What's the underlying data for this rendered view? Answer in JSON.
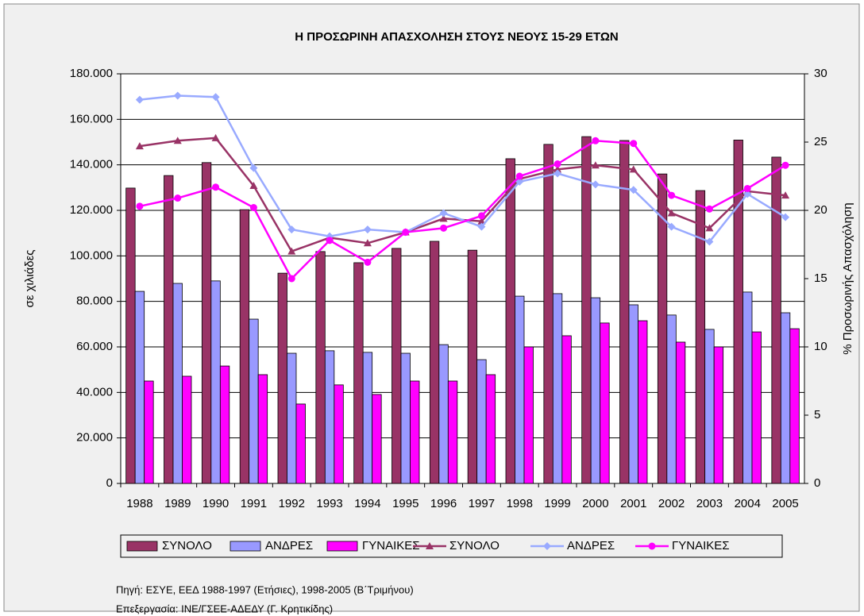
{
  "chart_data": {
    "type": "bar",
    "title": "Η ΠΡΟΣΩΡΙΝΗ ΑΠΑΣΧΟΛΗΣΗ ΣΤΟΥΣ ΝΕΟΥΣ 15-29 ΕΤΩΝ",
    "ylabel": "σε χιλιάδες",
    "y2label": "% Προσωρινής Απασχόληση",
    "categories": [
      "1988",
      "1989",
      "1990",
      "1991",
      "1992",
      "1993",
      "1994",
      "1995",
      "1996",
      "1997",
      "1998",
      "1999",
      "2000",
      "2001",
      "2002",
      "2003",
      "2004",
      "2005"
    ],
    "series": [
      {
        "name": "ΣΥΝΟΛΟ",
        "type": "bar",
        "color": "#993366",
        "values": [
          129800,
          135300,
          141000,
          120300,
          92400,
          101900,
          97000,
          103300,
          106400,
          102500,
          142700,
          149000,
          152400,
          150700,
          136000,
          128700,
          150900,
          143400
        ]
      },
      {
        "name": "ΑΝΔΡΕΣ",
        "type": "bar",
        "color": "#9999ff",
        "values": [
          84400,
          87900,
          89000,
          72200,
          57200,
          58300,
          57600,
          57200,
          61000,
          54400,
          82300,
          83400,
          81600,
          78500,
          74000,
          67700,
          84100,
          75000
        ]
      },
      {
        "name": "ΓΥΝΑΙΚΕΣ",
        "type": "bar",
        "color": "#ff00ff",
        "values": [
          45000,
          47100,
          51600,
          47800,
          34900,
          43300,
          39100,
          45000,
          45000,
          47800,
          60000,
          64900,
          70500,
          71500,
          62100,
          60000,
          66600,
          68000
        ]
      },
      {
        "name": "ΣΥΝΟΛΟ",
        "type": "line",
        "axis": "y2",
        "marker": "triangle",
        "color": "#993366",
        "values": [
          24.7,
          25.1,
          25.3,
          21.8,
          17.0,
          18.0,
          17.6,
          18.4,
          19.4,
          19.2,
          22.3,
          23.0,
          23.3,
          23.0,
          19.8,
          18.7,
          21.4,
          21.1
        ]
      },
      {
        "name": "ΑΝΔΡΕΣ",
        "type": "line",
        "axis": "y2",
        "marker": "diamond",
        "color": "#99aaff",
        "values": [
          28.1,
          28.4,
          28.3,
          23.1,
          18.6,
          18.1,
          18.6,
          18.4,
          19.8,
          18.8,
          22.1,
          22.7,
          21.9,
          21.5,
          18.8,
          17.7,
          21.2,
          19.5
        ]
      },
      {
        "name": "ΓΥΝΑΙΚΕΣ",
        "type": "line",
        "axis": "y2",
        "marker": "circle",
        "color": "#ff00ff",
        "values": [
          20.3,
          20.9,
          21.7,
          20.2,
          15.0,
          17.8,
          16.2,
          18.4,
          18.7,
          19.6,
          22.5,
          23.4,
          25.1,
          24.9,
          21.1,
          20.1,
          21.6,
          23.3
        ]
      }
    ],
    "ylim": [
      0,
      180000
    ],
    "yticks": [
      0,
      {
        "value": 20000,
        "label": "20.000"
      },
      {
        "value": 40000,
        "label": "40.000"
      },
      {
        "value": 60000,
        "label": "60.000"
      },
      {
        "value": 80000,
        "label": "80.000"
      },
      {
        "value": 100000,
        "label": "100.000"
      },
      {
        "value": 120000,
        "label": "120.000"
      },
      {
        "value": 140000,
        "label": "140.000"
      },
      {
        "value": 160000,
        "label": "160.000"
      },
      {
        "value": 180000,
        "label": "180.000"
      }
    ],
    "y2lim": [
      0,
      30
    ],
    "y2ticks": [
      0,
      5,
      10,
      15,
      20,
      25,
      30
    ],
    "grid": true,
    "legend": "bottom",
    "notes": [
      "Πηγή: ΕΣΥΕ, ΕΕΔ 1988-1997 (Ετήσιες), 1998-2005 (Β΄Τριμήνου)",
      "Επεξεργασία: ΙΝΕ/ΓΣΕΕ-ΑΔΕΔΥ (Γ. Κρητικίδης)"
    ]
  }
}
